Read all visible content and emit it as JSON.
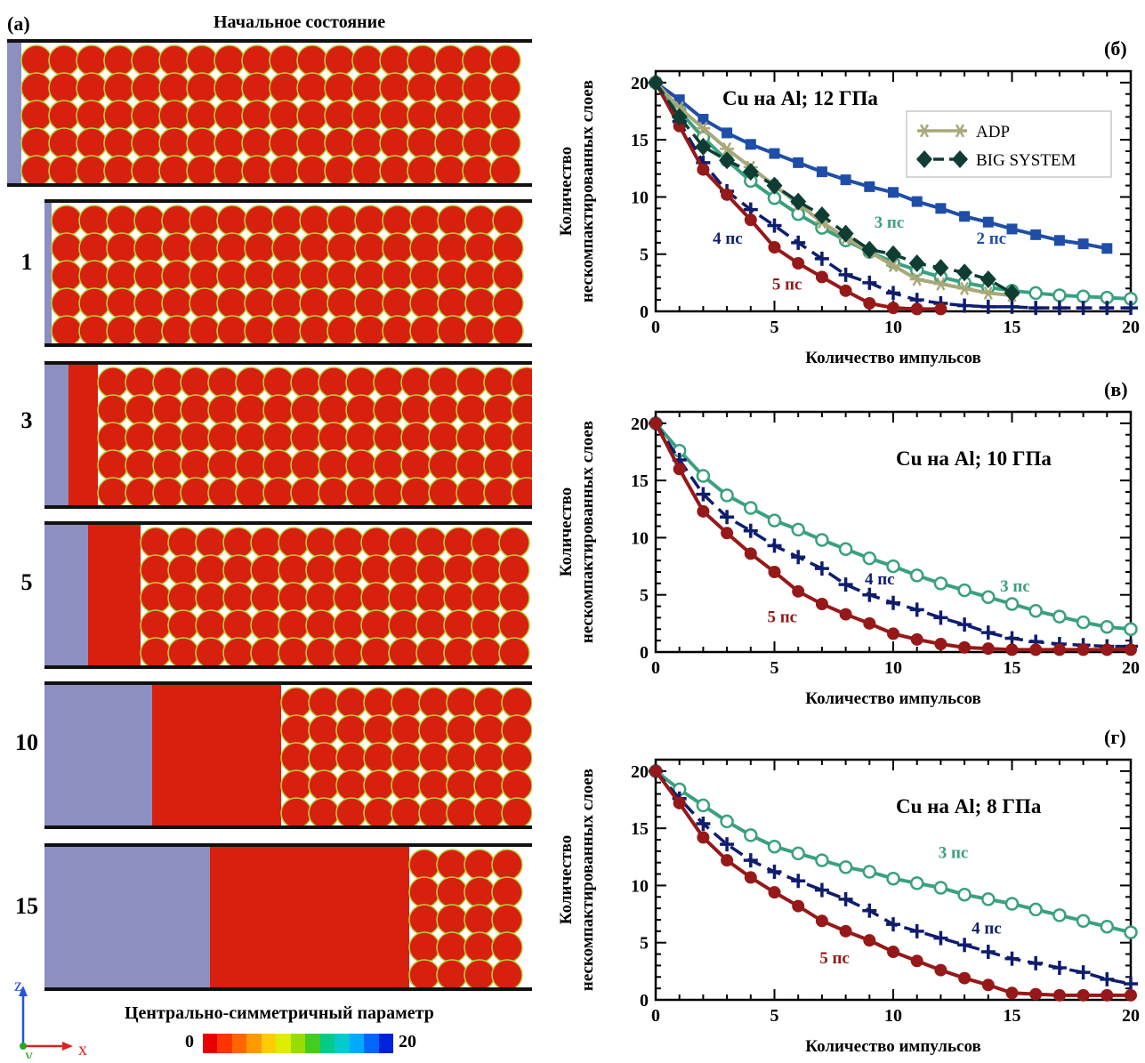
{
  "left_panel": {
    "letter": "(a)",
    "title": "Начальное состояние",
    "rows": [
      {
        "label": "",
        "solid_fraction": 0.0
      },
      {
        "label": "1",
        "solid_fraction": 0.0
      },
      {
        "label": "3",
        "solid_fraction": 0.05
      },
      {
        "label": "5",
        "solid_fraction": 0.09
      },
      {
        "label": "10",
        "solid_fraction": 0.22
      },
      {
        "label": "15",
        "solid_fraction": 0.34
      }
    ],
    "axes": {
      "z": "z",
      "y": "y",
      "x": "x"
    },
    "colorbar": {
      "title": "Центрально-симметричный параметр",
      "min": "0",
      "max": "20",
      "colors": [
        "#e60000",
        "#ff3300",
        "#ff6600",
        "#ff9900",
        "#ffcc00",
        "#ddee00",
        "#99dd00",
        "#44cc22",
        "#00cc88",
        "#00cccc",
        "#00aaff",
        "#0066ff",
        "#0022dd"
      ]
    },
    "colors": {
      "background_solid": "#8d8fc0",
      "particle": "#d8200f",
      "boundary": "#b6d43a"
    }
  },
  "chart_data": [
    {
      "panel": "(б)",
      "type": "line",
      "title": "Cu на Al; 12 ГПа",
      "xlabel": "Количество импульсов",
      "ylabel": "Количество нескомпактированных слоев",
      "xlim": [
        0,
        20
      ],
      "ylim": [
        0,
        21
      ],
      "xticks": [
        0,
        5,
        10,
        15,
        20
      ],
      "yticks": [
        0,
        5,
        10,
        15,
        20
      ],
      "legend": {
        "position": "top-right",
        "entries": [
          {
            "name": "ADP",
            "color": "#a8a878",
            "marker": "asterisk"
          },
          {
            "name": "BIG SYSTEM",
            "color": "#0e3d34",
            "marker": "diamond"
          }
        ]
      },
      "series": [
        {
          "label": "2 пс",
          "color": "#1f4ea8",
          "marker": "square",
          "dash": false,
          "x": [
            0,
            1,
            2,
            3,
            4,
            5,
            6,
            7,
            8,
            9,
            10,
            11,
            12,
            13,
            14,
            15,
            16,
            17,
            18,
            19
          ],
          "y": [
            20,
            18.5,
            16.8,
            15.6,
            14.6,
            13.8,
            13.0,
            12.2,
            11.5,
            10.9,
            10.4,
            9.6,
            9.0,
            8.3,
            7.8,
            7.2,
            6.7,
            6.2,
            5.9,
            5.5
          ]
        },
        {
          "label": "3 пс",
          "color": "#3aa07f",
          "marker": "circle-open",
          "dash": false,
          "x": [
            0,
            1,
            2,
            3,
            4,
            5,
            6,
            7,
            8,
            9,
            10,
            11,
            12,
            13,
            14,
            15,
            16,
            17,
            18,
            19,
            20
          ],
          "y": [
            20,
            17.5,
            15.2,
            13.2,
            11.4,
            9.9,
            8.5,
            7.3,
            6.2,
            5.2,
            4.3,
            3.6,
            3.0,
            2.5,
            2.1,
            1.8,
            1.6,
            1.4,
            1.3,
            1.2,
            1.1
          ]
        },
        {
          "label": "4 пс",
          "color": "#0e1d6e",
          "marker": "plus",
          "dash": true,
          "x": [
            0,
            1,
            2,
            3,
            4,
            5,
            6,
            7,
            8,
            9,
            10,
            11,
            12,
            13,
            14,
            15,
            16,
            17,
            18,
            19,
            20
          ],
          "y": [
            20,
            16.6,
            13.0,
            10.5,
            8.9,
            7.5,
            6.0,
            4.6,
            3.2,
            2.5,
            1.6,
            1.0,
            0.7,
            0.5,
            0.4,
            0.4,
            0.3,
            0.3,
            0.3,
            0.3,
            0.3
          ]
        },
        {
          "label": "5 пс",
          "color": "#961818",
          "marker": "circle",
          "dash": false,
          "x": [
            0,
            1,
            2,
            3,
            4,
            5,
            6,
            7,
            8,
            9,
            10,
            11,
            12
          ],
          "y": [
            20,
            16.2,
            12.4,
            10.2,
            8.0,
            5.6,
            4.2,
            3.0,
            1.8,
            0.7,
            0.3,
            0.2,
            0.2
          ]
        },
        {
          "label": "",
          "color": "#a8a878",
          "marker": "asterisk",
          "dash": false,
          "x": [
            0,
            1,
            2,
            3,
            4,
            5,
            6,
            7,
            8,
            9,
            10,
            11,
            12,
            13,
            14,
            15
          ],
          "y": [
            20,
            17.8,
            16.0,
            14.2,
            12.6,
            11.0,
            9.4,
            7.8,
            6.4,
            5.2,
            4.0,
            2.8,
            2.4,
            2.0,
            1.6,
            1.4
          ]
        },
        {
          "label": "",
          "color": "#0e3d34",
          "marker": "diamond",
          "dash": true,
          "x": [
            0,
            1,
            2,
            3,
            4,
            5,
            6,
            7,
            8,
            9,
            10,
            11,
            12,
            13,
            14,
            15
          ],
          "y": [
            20,
            17.0,
            14.4,
            13.2,
            12.2,
            11.0,
            9.6,
            8.4,
            6.8,
            5.4,
            5.0,
            4.2,
            3.8,
            3.4,
            2.8,
            1.6
          ]
        }
      ],
      "labels": [
        {
          "text": "3 пс",
          "x": 9.2,
          "y": 7.3,
          "color": "#3aa07f"
        },
        {
          "text": "2 пс",
          "x": 13.5,
          "y": 5.9,
          "color": "#1f4ea8"
        },
        {
          "text": "4 пс",
          "x": 2.4,
          "y": 5.9,
          "color": "#0e1d6e"
        },
        {
          "text": "5 пс",
          "x": 4.9,
          "y": 1.9,
          "color": "#961818"
        }
      ]
    },
    {
      "panel": "(в)",
      "type": "line",
      "title": "Cu на Al; 10 ГПа",
      "xlabel": "Количество импульсов",
      "ylabel": "Количество нескомпактированных слоев",
      "xlim": [
        0,
        20
      ],
      "ylim": [
        0,
        21
      ],
      "xticks": [
        0,
        5,
        10,
        15,
        20
      ],
      "yticks": [
        0,
        5,
        10,
        15,
        20
      ],
      "series": [
        {
          "label": "3 пс",
          "color": "#3aa07f",
          "marker": "circle-open",
          "dash": false,
          "x": [
            0,
            1,
            2,
            3,
            4,
            5,
            6,
            7,
            8,
            9,
            10,
            11,
            12,
            13,
            14,
            15,
            16,
            17,
            18,
            19,
            20
          ],
          "y": [
            20,
            17.6,
            15.4,
            13.7,
            12.6,
            11.5,
            10.7,
            9.8,
            9.0,
            8.2,
            7.5,
            6.7,
            6.0,
            5.4,
            4.8,
            4.2,
            3.6,
            3.1,
            2.6,
            2.2,
            2.0
          ]
        },
        {
          "label": "4 пс",
          "color": "#0e1d6e",
          "marker": "plus",
          "dash": true,
          "x": [
            0,
            1,
            2,
            3,
            4,
            5,
            6,
            7,
            8,
            9,
            10,
            11,
            12,
            13,
            14,
            15,
            16,
            17,
            18,
            19,
            20
          ],
          "y": [
            20,
            16.8,
            13.8,
            11.8,
            10.6,
            9.3,
            8.3,
            7.3,
            5.9,
            5.0,
            4.3,
            3.7,
            3.0,
            2.4,
            1.7,
            1.2,
            0.9,
            0.7,
            0.6,
            0.5,
            0.5
          ]
        },
        {
          "label": "5 пс",
          "color": "#961818",
          "marker": "circle",
          "dash": false,
          "x": [
            0,
            1,
            2,
            3,
            4,
            5,
            6,
            7,
            8,
            9,
            10,
            11,
            12,
            13,
            14,
            15,
            16,
            17,
            18,
            19,
            20
          ],
          "y": [
            20,
            16.0,
            12.3,
            10.4,
            8.6,
            7.0,
            5.3,
            4.2,
            3.3,
            2.5,
            1.6,
            1.1,
            0.7,
            0.4,
            0.3,
            0.2,
            0.2,
            0.2,
            0.2,
            0.2,
            0.2
          ]
        }
      ],
      "labels": [
        {
          "text": "4 пс",
          "x": 8.8,
          "y": 5.9,
          "color": "#0e1d6e"
        },
        {
          "text": "3 пс",
          "x": 14.5,
          "y": 5.3,
          "color": "#3aa07f"
        },
        {
          "text": "5 пс",
          "x": 4.7,
          "y": 2.6,
          "color": "#961818"
        }
      ]
    },
    {
      "panel": "(г)",
      "type": "line",
      "title": "Cu на Al; 8 ГПа",
      "xlabel": "Количество импульсов",
      "ylabel": "Количество нескомпактированных слоев",
      "xlim": [
        0,
        20
      ],
      "ylim": [
        0,
        21
      ],
      "xticks": [
        0,
        5,
        10,
        15,
        20
      ],
      "yticks": [
        0,
        5,
        10,
        15,
        20
      ],
      "series": [
        {
          "label": "3 пс",
          "color": "#3aa07f",
          "marker": "circle-open",
          "dash": false,
          "x": [
            0,
            1,
            2,
            3,
            4,
            5,
            6,
            7,
            8,
            9,
            10,
            11,
            12,
            13,
            14,
            15,
            16,
            17,
            18,
            19,
            20
          ],
          "y": [
            20,
            18.4,
            17.0,
            15.6,
            14.4,
            13.4,
            12.8,
            12.2,
            11.6,
            11.2,
            10.6,
            10.2,
            9.8,
            9.2,
            8.8,
            8.4,
            7.9,
            7.4,
            6.9,
            6.4,
            5.9
          ]
        },
        {
          "label": "4 пс",
          "color": "#0e1d6e",
          "marker": "plus",
          "dash": true,
          "x": [
            0,
            1,
            2,
            3,
            4,
            5,
            6,
            7,
            8,
            9,
            10,
            11,
            12,
            13,
            14,
            15,
            16,
            17,
            18,
            19,
            20
          ],
          "y": [
            20,
            17.6,
            15.4,
            13.6,
            12.2,
            11.2,
            10.4,
            9.6,
            8.8,
            7.8,
            6.6,
            6.0,
            5.4,
            4.8,
            4.2,
            3.6,
            3.2,
            2.8,
            2.4,
            1.8,
            1.4
          ]
        },
        {
          "label": "5 пс",
          "color": "#961818",
          "marker": "circle",
          "dash": false,
          "x": [
            0,
            1,
            2,
            3,
            4,
            5,
            6,
            7,
            8,
            9,
            10,
            11,
            12,
            13,
            14,
            15,
            16,
            17,
            18,
            19,
            20
          ],
          "y": [
            20,
            17.2,
            14.2,
            12.2,
            10.7,
            9.4,
            8.2,
            6.9,
            6.0,
            5.2,
            4.2,
            3.4,
            2.6,
            1.9,
            1.3,
            0.6,
            0.5,
            0.4,
            0.4,
            0.4,
            0.4
          ]
        }
      ],
      "labels": [
        {
          "text": "3 пс",
          "x": 11.9,
          "y": 12.4,
          "color": "#3aa07f"
        },
        {
          "text": "4 пс",
          "x": 13.3,
          "y": 5.8,
          "color": "#0e1d6e"
        },
        {
          "text": "5 пс",
          "x": 6.9,
          "y": 3.2,
          "color": "#961818"
        }
      ]
    }
  ]
}
